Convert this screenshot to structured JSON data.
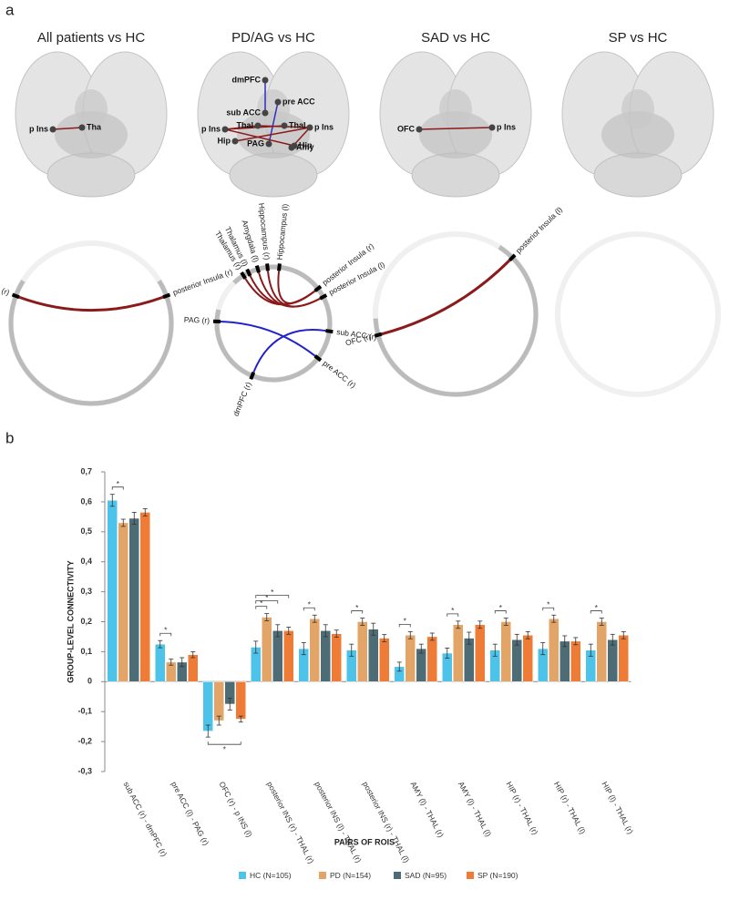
{
  "panel_a": {
    "label": "a",
    "panels": [
      {
        "title": "All patients vs HC",
        "brain_nodes": [
          "p Ins",
          "Tha"
        ],
        "circle_nodes": [
          "Thalamus (r)",
          "posterior Insula (r)"
        ]
      },
      {
        "title": "PD/AG vs HC",
        "brain_nodes": [
          "dmPFC",
          "pre ACC",
          "sub ACC",
          "Thal",
          "Thal",
          "p Ins",
          "p Ins",
          "Hip",
          "PAG",
          "Amy",
          "Hip"
        ],
        "circle_nodes": [
          "Thalamus (r)",
          "Thalamus (l)",
          "Amygdala (l)",
          "Hippocampus (r)",
          "Hippocampus (l)",
          "posterior Insula (r)",
          "posterior Insula (l)",
          "sub ACC (r)",
          "pre ACC (r)",
          "dmPFC (r)",
          "PAG (r)"
        ]
      },
      {
        "title": "SAD vs HC",
        "brain_nodes": [
          "OFC",
          "p Ins"
        ],
        "circle_nodes": [
          "OFC (r)",
          "posterior Insula (l)"
        ]
      },
      {
        "title": "SP vs HC",
        "brain_nodes": [],
        "circle_nodes": []
      }
    ]
  },
  "panel_b_label": "b",
  "chart_data": {
    "type": "bar",
    "ylabel": "GROUP-LEVEL CONNECTIVITY",
    "xlabel": "PAIRS OF ROIS",
    "categories": [
      "sub ACC (r) - dmPFC (r)",
      "pre ACC (l) - PAG (r)",
      "OFC (r) - p INS (l)",
      "posterior INS (r) - THAL (r)",
      "posterior INS (l) - THAL (r)",
      "posterior INS (r) - THAL (l)",
      "AMY (l) - THAL (r)",
      "AMY (l) - THAL (l)",
      "HIP (r) - THAL (r)",
      "HIP (r) - THAL (l)",
      "HIP (l) - THAL (r)"
    ],
    "series": [
      {
        "name": "HC (N=105)",
        "color": "#4dc3ea",
        "values": [
          0.605,
          0.125,
          -0.165,
          0.115,
          0.11,
          0.105,
          0.05,
          0.095,
          0.105,
          0.11,
          0.105
        ],
        "errors": [
          0.02,
          0.012,
          0.02,
          0.02,
          0.02,
          0.02,
          0.015,
          0.017,
          0.02,
          0.02,
          0.02
        ]
      },
      {
        "name": "PD (N=154)",
        "color": "#e2a467",
        "values": [
          0.53,
          0.065,
          -0.13,
          0.215,
          0.21,
          0.2,
          0.155,
          0.19,
          0.2,
          0.21,
          0.2
        ],
        "errors": [
          0.012,
          0.01,
          0.015,
          0.012,
          0.012,
          0.012,
          0.012,
          0.012,
          0.012,
          0.012,
          0.012
        ]
      },
      {
        "name": "SAD (N=95)",
        "color": "#4e6c75",
        "values": [
          0.545,
          0.065,
          -0.075,
          0.17,
          0.17,
          0.175,
          0.11,
          0.145,
          0.14,
          0.135,
          0.14
        ],
        "errors": [
          0.02,
          0.015,
          0.02,
          0.02,
          0.02,
          0.02,
          0.015,
          0.02,
          0.018,
          0.018,
          0.018
        ]
      },
      {
        "name": "SP (N=190)",
        "color": "#ef7c36",
        "values": [
          0.565,
          0.09,
          -0.125,
          0.17,
          0.16,
          0.145,
          0.15,
          0.19,
          0.155,
          0.135,
          0.155
        ],
        "errors": [
          0.012,
          0.01,
          0.01,
          0.012,
          0.012,
          0.012,
          0.012,
          0.012,
          0.012,
          0.012,
          0.012
        ]
      }
    ],
    "significance": [
      {
        "group": 0,
        "from": 0,
        "to": 1,
        "text": "*"
      },
      {
        "group": 1,
        "from": 0,
        "to": 1,
        "text": "*"
      },
      {
        "group": 2,
        "from": 0,
        "to": 3,
        "text": "*"
      },
      {
        "group": 3,
        "from": 0,
        "to": 1,
        "text": "*"
      },
      {
        "group": 3,
        "from": 0,
        "to": 2,
        "text": "*"
      },
      {
        "group": 3,
        "from": 0,
        "to": 3,
        "text": "*"
      },
      {
        "group": 4,
        "from": 0,
        "to": 1,
        "text": "*"
      },
      {
        "group": 5,
        "from": 0,
        "to": 1,
        "text": "*"
      },
      {
        "group": 6,
        "from": 0,
        "to": 1,
        "text": "*"
      },
      {
        "group": 7,
        "from": 0,
        "to": 1,
        "text": "*"
      },
      {
        "group": 8,
        "from": 0,
        "to": 1,
        "text": "*"
      },
      {
        "group": 9,
        "from": 0,
        "to": 1,
        "text": "*"
      },
      {
        "group": 10,
        "from": 0,
        "to": 1,
        "text": "*"
      }
    ],
    "ylim": [
      -0.3,
      0.7
    ],
    "yticks": [
      {
        "value": -0.3,
        "label": "-0,3"
      },
      {
        "value": -0.2,
        "label": "-0,2"
      },
      {
        "value": -0.1,
        "label": "-0,1"
      },
      0,
      {
        "value": 0.1,
        "label": "0,1"
      },
      {
        "value": 0.2,
        "label": "0,2"
      },
      {
        "value": 0.3,
        "label": "0,3"
      },
      {
        "value": 0.4,
        "label": "0,4"
      },
      {
        "value": 0.5,
        "label": "0,5"
      },
      {
        "value": 0.6,
        "label": "0,6"
      },
      {
        "value": 0.7,
        "label": "0,7"
      }
    ],
    "grid": false,
    "legend": "bottom"
  }
}
